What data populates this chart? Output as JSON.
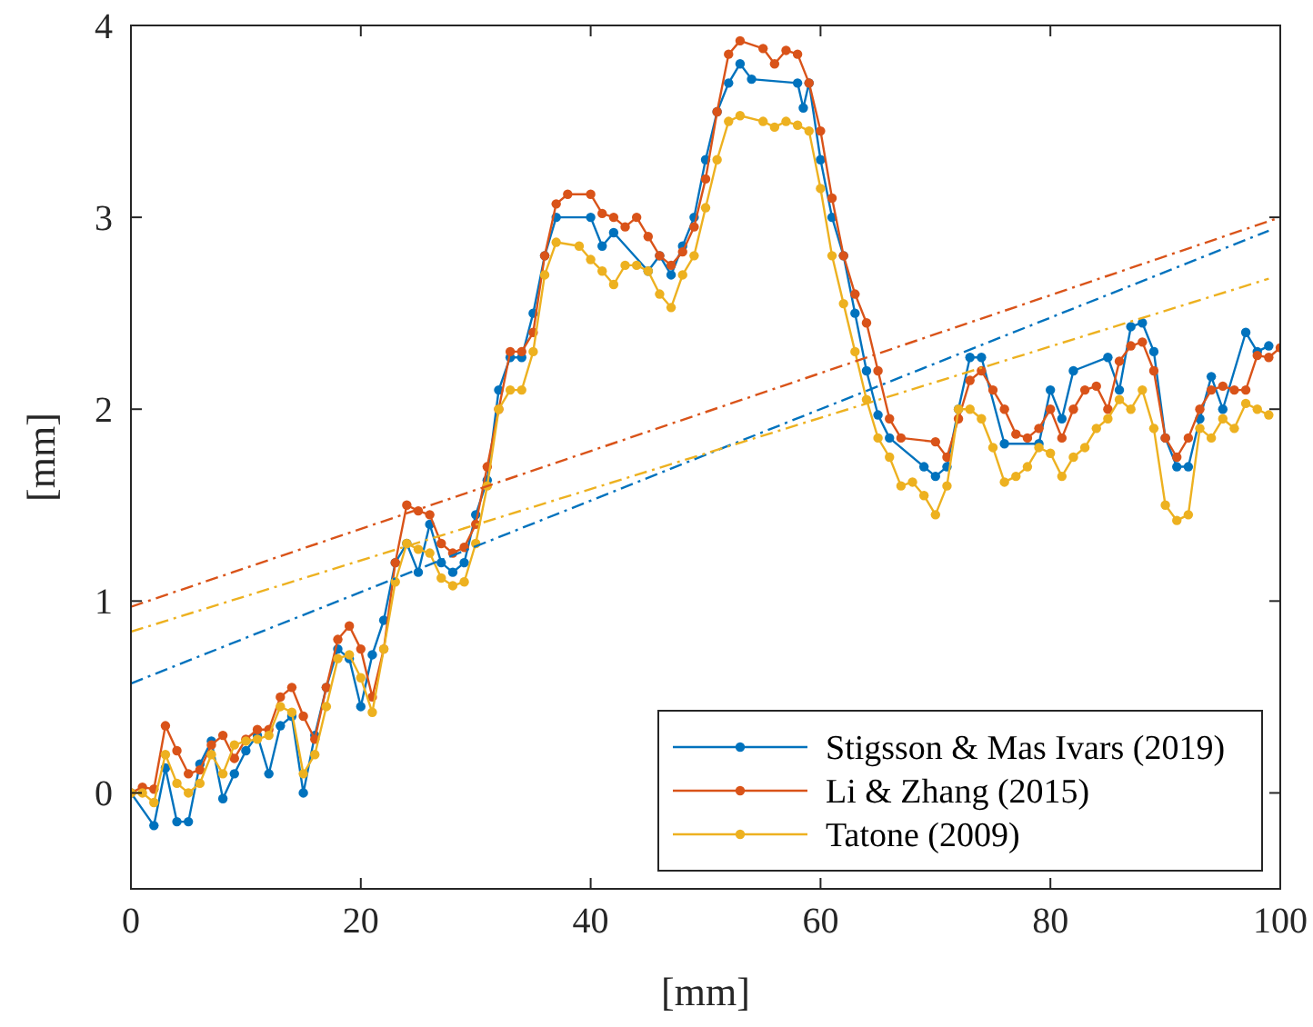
{
  "chart_data": {
    "type": "line",
    "xlabel": "[mm]",
    "ylabel": "[mm]",
    "xlim": [
      0,
      100
    ],
    "ylim": [
      -0.5,
      4
    ],
    "xticks": [
      0,
      20,
      40,
      60,
      80,
      100
    ],
    "yticks": [
      0,
      1,
      2,
      3,
      4
    ],
    "grid": false,
    "legend": "bottom right",
    "series": [
      {
        "name": "Stigsson & Mas Ivars (2019)",
        "color": "#0072bd",
        "marker": "circle",
        "line_style": "solid",
        "x": [
          0,
          2,
          3,
          4,
          5,
          6,
          7,
          8,
          9,
          10,
          11,
          12,
          13,
          14,
          15,
          16,
          17,
          18,
          19,
          20,
          21,
          22,
          23,
          24,
          25,
          26,
          27,
          28,
          29,
          30,
          31,
          32,
          33,
          34,
          35,
          36,
          37,
          40,
          41,
          42,
          45,
          46,
          47,
          48,
          49,
          50,
          51,
          52,
          53,
          54,
          58,
          58.5,
          59,
          60,
          61,
          62,
          63,
          64,
          65,
          66,
          69,
          70,
          71,
          72,
          73,
          74,
          76,
          79,
          80,
          81,
          82,
          85,
          86,
          87,
          88,
          89,
          90,
          91,
          92,
          93,
          94,
          95,
          97,
          98,
          99
        ],
        "values": [
          0,
          -0.17,
          0.13,
          -0.15,
          -0.15,
          0.15,
          0.27,
          -0.03,
          0.1,
          0.22,
          0.3,
          0.1,
          0.35,
          0.4,
          0,
          0.3,
          0.55,
          0.75,
          0.7,
          0.45,
          0.72,
          0.9,
          1.2,
          1.3,
          1.15,
          1.4,
          1.2,
          1.15,
          1.2,
          1.45,
          1.63,
          2.1,
          2.27,
          2.27,
          2.5,
          2.8,
          3,
          3,
          2.85,
          2.92,
          2.72,
          2.8,
          2.7,
          2.85,
          3,
          3.3,
          3.55,
          3.7,
          3.8,
          3.72,
          3.7,
          3.57,
          3.7,
          3.3,
          3,
          2.8,
          2.5,
          2.2,
          1.97,
          1.85,
          1.7,
          1.65,
          1.7,
          2,
          2.27,
          2.27,
          1.82,
          1.82,
          2.1,
          1.95,
          2.2,
          2.27,
          2.1,
          2.43,
          2.45,
          2.3,
          1.85,
          1.7,
          1.7,
          1.95,
          2.17,
          2,
          2.4,
          2.3,
          2.33
        ]
      },
      {
        "name": "Li & Zhang (2015)",
        "color": "#d95319",
        "marker": "circle",
        "line_style": "solid",
        "x": [
          0,
          1,
          2,
          3,
          4,
          5,
          6,
          7,
          8,
          9,
          10,
          11,
          12,
          13,
          14,
          15,
          16,
          17,
          18,
          19,
          20,
          21,
          22,
          23,
          24,
          25,
          26,
          27,
          28,
          29,
          30,
          31,
          32,
          33,
          34,
          35,
          36,
          37,
          38,
          40,
          41,
          42,
          43,
          44,
          45,
          46,
          47,
          48,
          49,
          50,
          51,
          52,
          53,
          55,
          56,
          57,
          58,
          59,
          60,
          61,
          62,
          63,
          64,
          65,
          66,
          67,
          70,
          71,
          72,
          73,
          74,
          75,
          76,
          77,
          78,
          79,
          80,
          81,
          82,
          83,
          84,
          85,
          86,
          87,
          88,
          89,
          90,
          91,
          92,
          93,
          94,
          95,
          96,
          97,
          98,
          99,
          100
        ],
        "values": [
          0,
          0.03,
          0.02,
          0.35,
          0.22,
          0.1,
          0.12,
          0.25,
          0.3,
          0.18,
          0.28,
          0.33,
          0.33,
          0.5,
          0.55,
          0.4,
          0.28,
          0.55,
          0.8,
          0.87,
          0.75,
          0.5,
          0.75,
          1.2,
          1.5,
          1.47,
          1.45,
          1.3,
          1.25,
          1.28,
          1.4,
          1.7,
          2,
          2.3,
          2.3,
          2.4,
          2.8,
          3.07,
          3.12,
          3.12,
          3.02,
          3,
          2.95,
          3,
          2.9,
          2.8,
          2.75,
          2.82,
          2.95,
          3.2,
          3.55,
          3.85,
          3.92,
          3.88,
          3.8,
          3.87,
          3.85,
          3.7,
          3.45,
          3.1,
          2.8,
          2.6,
          2.45,
          2.2,
          1.95,
          1.85,
          1.83,
          1.75,
          1.95,
          2.15,
          2.2,
          2.1,
          2,
          1.87,
          1.85,
          1.9,
          2,
          1.85,
          2,
          2.1,
          2.12,
          2,
          2.25,
          2.33,
          2.35,
          2.2,
          1.85,
          1.75,
          1.85,
          2,
          2.1,
          2.12,
          2.1,
          2.1,
          2.28,
          2.27,
          2.32
        ]
      },
      {
        "name": "Tatone (2009)",
        "color": "#edb120",
        "marker": "circle",
        "line_style": "solid",
        "x": [
          0,
          1,
          2,
          3,
          4,
          5,
          6,
          7,
          8,
          9,
          10,
          11,
          12,
          13,
          14,
          15,
          16,
          17,
          18,
          19,
          20,
          21,
          22,
          23,
          24,
          25,
          26,
          27,
          28,
          29,
          30,
          31,
          32,
          33,
          34,
          35,
          36,
          37,
          39,
          40,
          41,
          42,
          43,
          44,
          45,
          46,
          47,
          48,
          49,
          50,
          51,
          52,
          53,
          55,
          56,
          57,
          58,
          59,
          60,
          61,
          62,
          63,
          64,
          65,
          66,
          67,
          68,
          69,
          70,
          71,
          72,
          73,
          74,
          75,
          76,
          77,
          78,
          79,
          80,
          81,
          82,
          83,
          84,
          85,
          86,
          87,
          88,
          89,
          90,
          91,
          92,
          93,
          94,
          95,
          96,
          97,
          98,
          99
        ],
        "values": [
          0,
          0,
          -0.05,
          0.2,
          0.05,
          0,
          0.05,
          0.2,
          0.1,
          0.25,
          0.27,
          0.28,
          0.3,
          0.45,
          0.42,
          0.1,
          0.2,
          0.45,
          0.7,
          0.72,
          0.6,
          0.42,
          0.75,
          1.1,
          1.3,
          1.27,
          1.25,
          1.12,
          1.08,
          1.1,
          1.3,
          1.6,
          2,
          2.1,
          2.1,
          2.3,
          2.7,
          2.87,
          2.85,
          2.78,
          2.72,
          2.65,
          2.75,
          2.75,
          2.72,
          2.6,
          2.53,
          2.7,
          2.8,
          3.05,
          3.3,
          3.5,
          3.53,
          3.5,
          3.47,
          3.5,
          3.48,
          3.45,
          3.15,
          2.8,
          2.55,
          2.3,
          2.05,
          1.85,
          1.75,
          1.6,
          1.62,
          1.55,
          1.45,
          1.6,
          2,
          2,
          1.95,
          1.8,
          1.62,
          1.65,
          1.7,
          1.8,
          1.77,
          1.65,
          1.75,
          1.8,
          1.9,
          1.95,
          2.05,
          2,
          2.1,
          1.9,
          1.5,
          1.42,
          1.45,
          1.9,
          1.85,
          1.95,
          1.9,
          2.03,
          2,
          1.97
        ]
      },
      {
        "color": "#0072bd",
        "marker": "none",
        "line_style": "dashed",
        "x": [
          0,
          99
        ],
        "values": [
          0.57,
          2.93
        ]
      },
      {
        "color": "#d95319",
        "marker": "none",
        "line_style": "dashed",
        "x": [
          0,
          100
        ],
        "values": [
          0.97,
          3
        ]
      },
      {
        "color": "#edb120",
        "marker": "none",
        "line_style": "dashed",
        "x": [
          0,
          99
        ],
        "values": [
          0.84,
          2.68
        ]
      }
    ]
  }
}
